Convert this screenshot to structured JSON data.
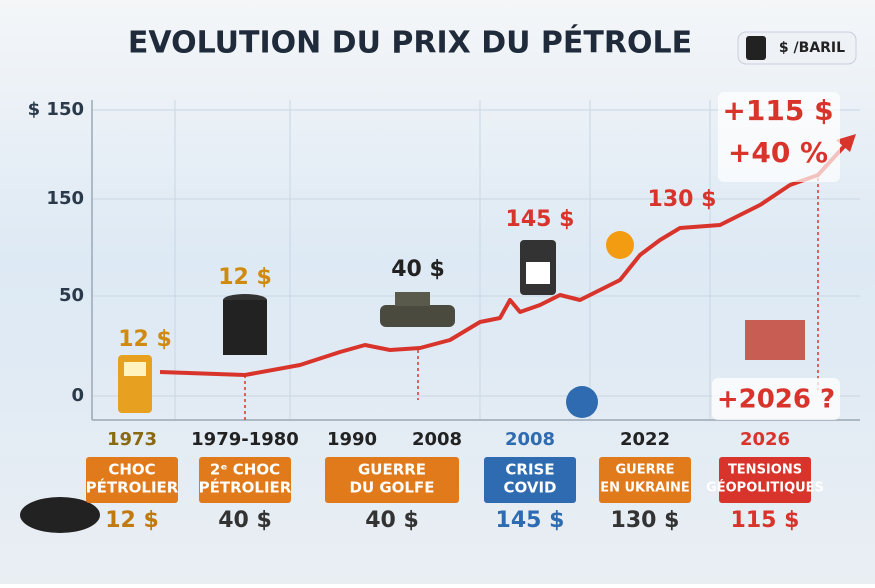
{
  "header": {
    "title": "EVOLUTION DU PRIX DU PÉTROLE",
    "unit": "$ /BARIL"
  },
  "axis_labels": [
    "$ 150",
    "150",
    "50",
    "0"
  ],
  "callouts": [
    "12 $",
    "12 $",
    "40 $",
    "145 $",
    "130 $"
  ],
  "highlights": [
    "+115 $",
    "+40 %",
    "+2026 ?"
  ],
  "timeline": [
    {
      "years": [
        "1973"
      ],
      "event": [
        "CHOC",
        "PÉTROLIER"
      ],
      "price": "12 $"
    },
    {
      "years": [
        "1979-1980"
      ],
      "event": [
        "2ᵉ CHOC",
        "PÉTROLIER"
      ],
      "price": "40 $"
    },
    {
      "years": [
        "1990",
        "2008"
      ],
      "event": [
        "GUERRE",
        "DU GOLFE"
      ],
      "price": "40 $"
    },
    {
      "years": [
        "2008"
      ],
      "event": [
        "CRISE",
        "COVID"
      ],
      "price": "145 $"
    },
    {
      "years": [
        "2022"
      ],
      "event": [
        "GUERRE",
        "EN UKRAINE"
      ],
      "price": "130 $"
    },
    {
      "years": [
        "2026"
      ],
      "event": [
        "TENSIONS",
        "GÉOPOLITIQUES"
      ],
      "price": "115 $"
    }
  ]
}
